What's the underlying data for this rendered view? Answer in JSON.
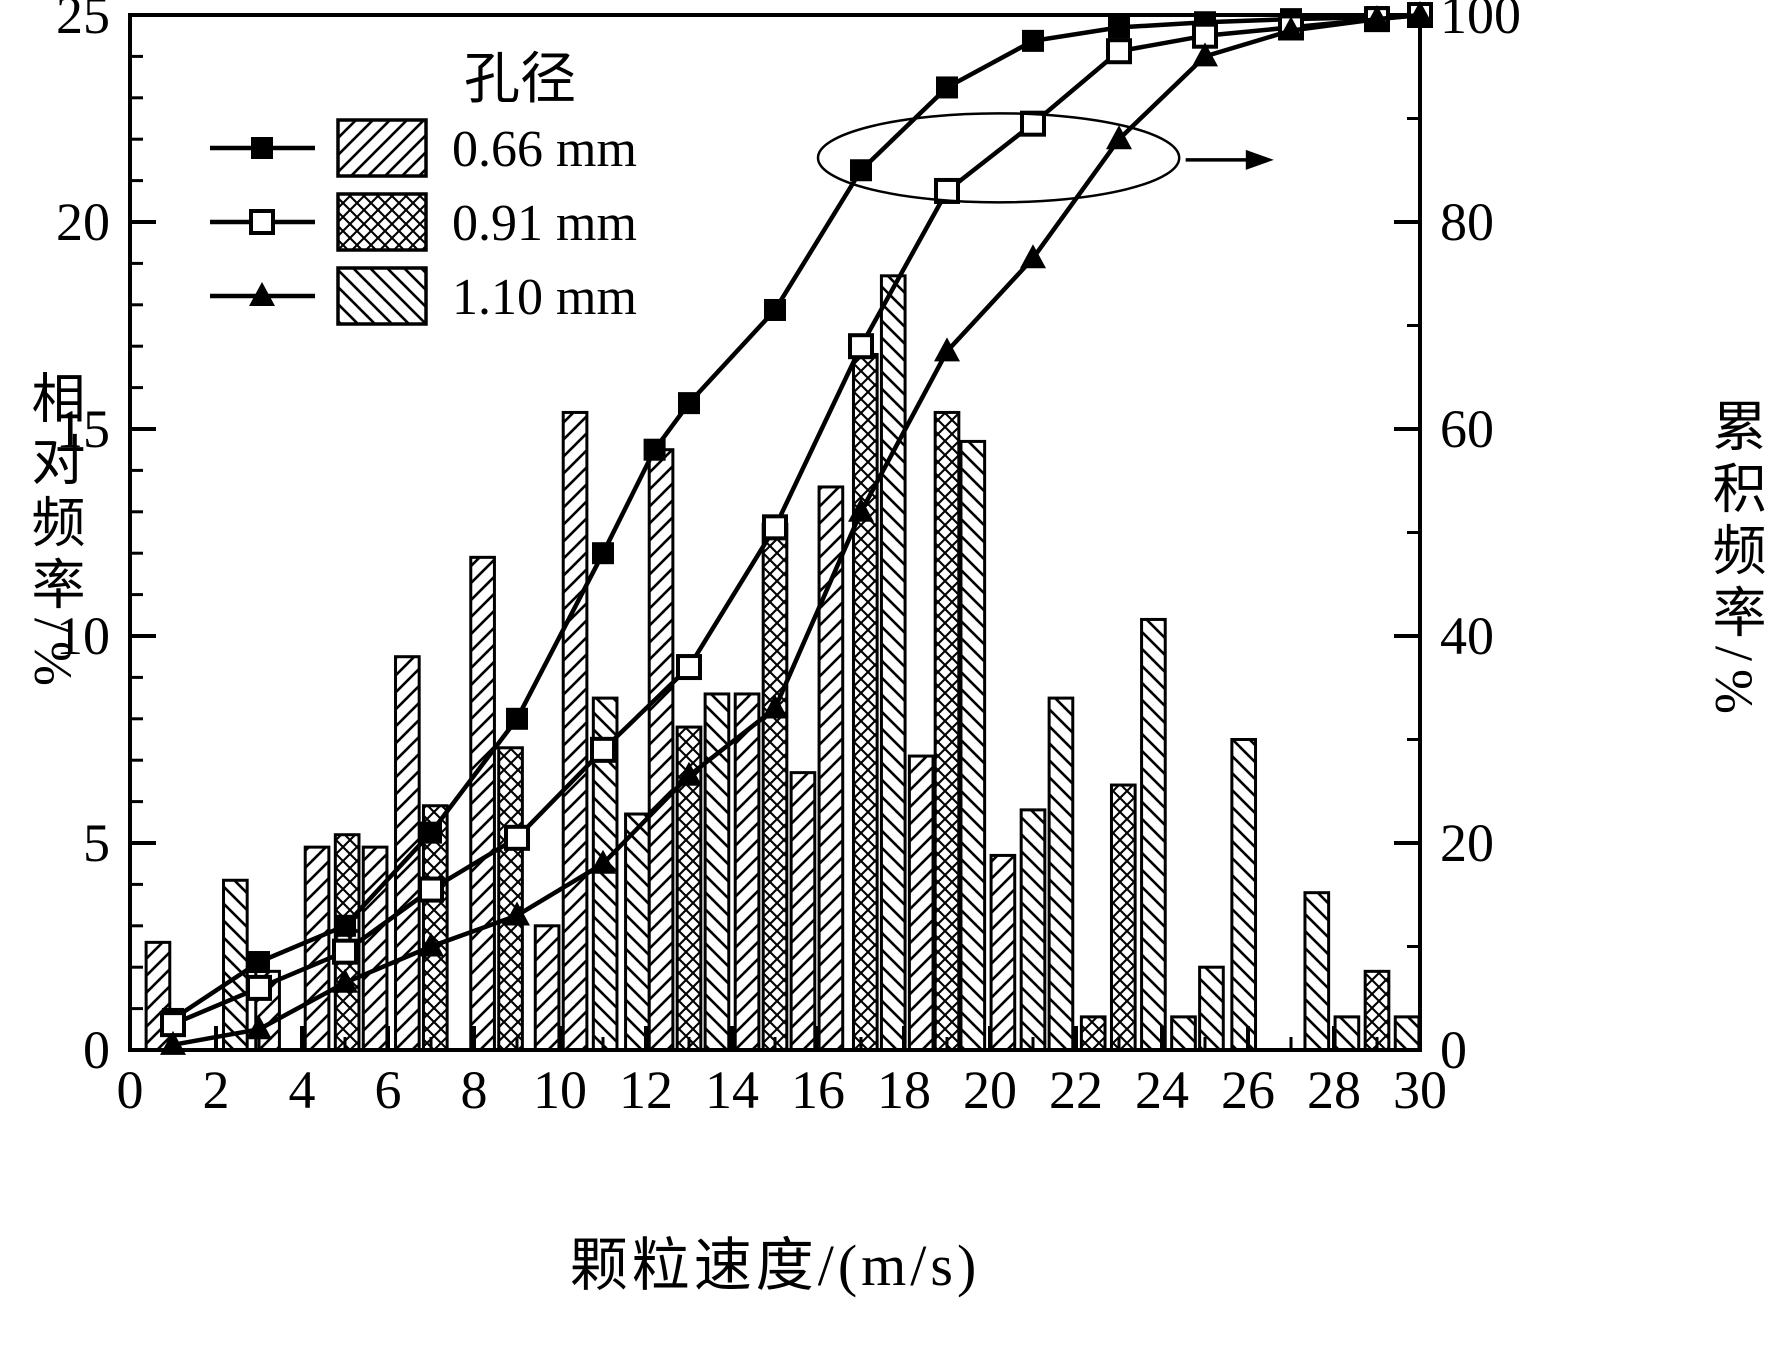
{
  "chart_data": {
    "type": "bar",
    "subtype": "histogram-with-cumulative-lines",
    "title": "",
    "xlabel": "颗粒速度/(m/s)",
    "ylabel_left": "相对频率/%",
    "ylabel_right": "累积频率/%",
    "legend_title": "孔径",
    "x_range": [
      0,
      30
    ],
    "y_left_range": [
      0,
      25
    ],
    "y_right_range": [
      0,
      100
    ],
    "x_ticks": [
      0,
      2,
      4,
      6,
      8,
      10,
      12,
      14,
      16,
      18,
      20,
      22,
      24,
      26,
      28,
      30
    ],
    "y_left_ticks": [
      0,
      5,
      10,
      15,
      20,
      25
    ],
    "y_right_ticks": [
      0,
      20,
      40,
      60,
      80,
      100
    ],
    "grid": false,
    "legend_position": "top-left-inside",
    "series_meta": [
      {
        "name": "0.66 mm",
        "hatch": "diagonal",
        "marker": "filled-square"
      },
      {
        "name": "0.91 mm",
        "hatch": "crosshatch",
        "marker": "open-square"
      },
      {
        "name": "1.10 mm",
        "hatch": "back-diagonal",
        "marker": "filled-triangle"
      }
    ],
    "bars": [
      {
        "x": 0.65,
        "h": 2.6,
        "s": 0
      },
      {
        "x": 2.45,
        "h": 4.1,
        "s": 2
      },
      {
        "x": 3.2,
        "h": 1.9,
        "s": 0
      },
      {
        "x": 4.35,
        "h": 4.9,
        "s": 0
      },
      {
        "x": 5.05,
        "h": 5.2,
        "s": 1
      },
      {
        "x": 5.7,
        "h": 4.9,
        "s": 0
      },
      {
        "x": 6.45,
        "h": 9.5,
        "s": 0
      },
      {
        "x": 7.1,
        "h": 5.9,
        "s": 1
      },
      {
        "x": 8.2,
        "h": 11.9,
        "s": 0
      },
      {
        "x": 8.85,
        "h": 7.3,
        "s": 1
      },
      {
        "x": 9.7,
        "h": 3.0,
        "s": 0
      },
      {
        "x": 10.35,
        "h": 15.4,
        "s": 0
      },
      {
        "x": 11.05,
        "h": 8.5,
        "s": 2
      },
      {
        "x": 11.8,
        "h": 5.7,
        "s": 2
      },
      {
        "x": 12.35,
        "h": 14.5,
        "s": 0
      },
      {
        "x": 13.0,
        "h": 7.8,
        "s": 1
      },
      {
        "x": 13.65,
        "h": 8.6,
        "s": 2
      },
      {
        "x": 14.35,
        "h": 8.6,
        "s": 0
      },
      {
        "x": 15.0,
        "h": 12.7,
        "s": 1
      },
      {
        "x": 15.65,
        "h": 6.7,
        "s": 0
      },
      {
        "x": 16.3,
        "h": 13.6,
        "s": 0
      },
      {
        "x": 17.1,
        "h": 16.8,
        "s": 1
      },
      {
        "x": 17.75,
        "h": 18.7,
        "s": 2
      },
      {
        "x": 18.4,
        "h": 7.1,
        "s": 0
      },
      {
        "x": 19.0,
        "h": 15.4,
        "s": 1
      },
      {
        "x": 19.6,
        "h": 14.7,
        "s": 2
      },
      {
        "x": 20.3,
        "h": 4.7,
        "s": 0
      },
      {
        "x": 21.0,
        "h": 5.8,
        "s": 2
      },
      {
        "x": 21.65,
        "h": 8.5,
        "s": 2
      },
      {
        "x": 22.4,
        "h": 0.8,
        "s": 1
      },
      {
        "x": 23.1,
        "h": 6.4,
        "s": 1
      },
      {
        "x": 23.8,
        "h": 10.4,
        "s": 2
      },
      {
        "x": 24.5,
        "h": 0.8,
        "s": 2
      },
      {
        "x": 25.15,
        "h": 2.0,
        "s": 2
      },
      {
        "x": 25.9,
        "h": 7.5,
        "s": 2
      },
      {
        "x": 27.6,
        "h": 3.8,
        "s": 2
      },
      {
        "x": 28.3,
        "h": 0.8,
        "s": 2
      },
      {
        "x": 29.0,
        "h": 1.9,
        "s": 1
      },
      {
        "x": 29.7,
        "h": 0.8,
        "s": 2
      }
    ],
    "lines": [
      {
        "name": "0.66 mm",
        "marker": "filled-square",
        "points": [
          [
            1,
            3
          ],
          [
            3,
            8.5
          ],
          [
            5,
            12
          ],
          [
            7,
            21
          ],
          [
            9,
            32
          ],
          [
            11,
            48
          ],
          [
            12.2,
            58
          ],
          [
            13,
            62.5
          ],
          [
            15,
            71.5
          ],
          [
            17,
            85
          ],
          [
            19,
            93
          ],
          [
            21,
            97.5
          ],
          [
            23,
            98.8
          ],
          [
            25,
            99.3
          ],
          [
            27,
            99.6
          ],
          [
            29,
            99.8
          ],
          [
            30,
            100
          ]
        ]
      },
      {
        "name": "0.91 mm",
        "marker": "open-square",
        "points": [
          [
            1,
            2.5
          ],
          [
            3,
            6
          ],
          [
            5,
            9.5
          ],
          [
            7,
            15.5
          ],
          [
            9,
            20.5
          ],
          [
            11,
            29
          ],
          [
            13,
            37
          ],
          [
            15,
            50.5
          ],
          [
            17,
            68
          ],
          [
            19,
            83
          ],
          [
            21,
            89.5
          ],
          [
            23,
            96.5
          ],
          [
            25,
            98
          ],
          [
            27,
            98.8
          ],
          [
            29,
            99.6
          ],
          [
            30,
            100
          ]
        ]
      },
      {
        "name": "1.10 mm",
        "marker": "filled-triangle",
        "points": [
          [
            1,
            0.5
          ],
          [
            3,
            2
          ],
          [
            5,
            6.5
          ],
          [
            7,
            10
          ],
          [
            9,
            13
          ],
          [
            11,
            18
          ],
          [
            13,
            26.5
          ],
          [
            15,
            33
          ],
          [
            17,
            52
          ],
          [
            19,
            67.5
          ],
          [
            21,
            76.5
          ],
          [
            23,
            88
          ],
          [
            25,
            96
          ],
          [
            27,
            98.5
          ],
          [
            29,
            99.6
          ],
          [
            30,
            100
          ]
        ]
      }
    ],
    "annotation": {
      "ellipse": {
        "cx": 20.2,
        "cy": 86.2,
        "rx": 4.2,
        "ry": 4.3
      },
      "arrow": {
        "x1": 24.55,
        "x2": 26.6,
        "y": 86.0
      }
    }
  }
}
